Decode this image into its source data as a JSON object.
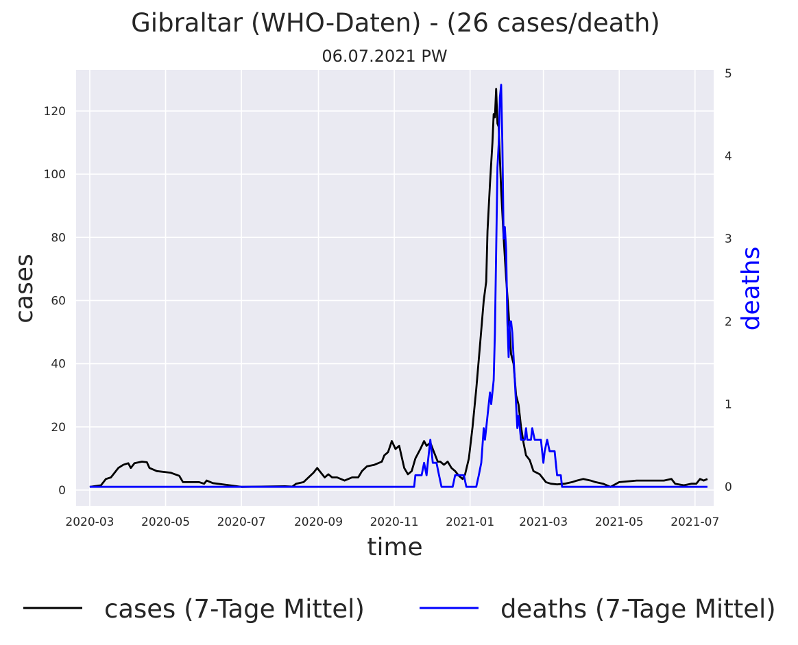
{
  "title": "Gibraltar (WHO-Daten) - (26 cases/death)",
  "subtitle": "06.07.2021 PW",
  "chart_data": {
    "type": "line",
    "title": "Gibraltar (WHO-Daten) - (26 cases/death)",
    "subtitle": "06.07.2021 PW",
    "xlabel": "time",
    "ylabel": "cases",
    "y2label": "deaths",
    "x_ticks": [
      "2020-03",
      "2020-05",
      "2020-07",
      "2020-09",
      "2020-11",
      "2021-01",
      "2021-03",
      "2021-05",
      "2021-07"
    ],
    "y_ticks": [
      0,
      20,
      40,
      60,
      80,
      100,
      120
    ],
    "y2_ticks": [
      0,
      1,
      2,
      3,
      4,
      5
    ],
    "xlim": [
      "2020-02-19",
      "2021-07-16"
    ],
    "ylim": [
      -5,
      133
    ],
    "y2lim": [
      -0.23,
      5.04
    ],
    "grid": true,
    "legend": "bottom",
    "series": [
      {
        "name": "cases (7-Tage Mittel)",
        "axis": "left",
        "color": "#000000",
        "points": [
          [
            "2020-03-01",
            1
          ],
          [
            "2020-03-10",
            1.5
          ],
          [
            "2020-03-14",
            3.5
          ],
          [
            "2020-03-18",
            4
          ],
          [
            "2020-03-24",
            7
          ],
          [
            "2020-03-28",
            8
          ],
          [
            "2020-04-01",
            8.5
          ],
          [
            "2020-04-03",
            7
          ],
          [
            "2020-04-06",
            8.5
          ],
          [
            "2020-04-12",
            9
          ],
          [
            "2020-04-16",
            8.8
          ],
          [
            "2020-04-18",
            7
          ],
          [
            "2020-04-24",
            6
          ],
          [
            "2020-05-05",
            5.5
          ],
          [
            "2020-05-12",
            4.5
          ],
          [
            "2020-05-15",
            2.5
          ],
          [
            "2020-05-28",
            2.5
          ],
          [
            "2020-06-01",
            2
          ],
          [
            "2020-06-03",
            3
          ],
          [
            "2020-06-08",
            2.2
          ],
          [
            "2020-06-20",
            1.6
          ],
          [
            "2020-07-01",
            1
          ],
          [
            "2020-08-05",
            1.2
          ],
          [
            "2020-08-11",
            1.1
          ],
          [
            "2020-08-14",
            2
          ],
          [
            "2020-08-20",
            2.5
          ],
          [
            "2020-08-24",
            4
          ],
          [
            "2020-08-28",
            5.5
          ],
          [
            "2020-08-31",
            7
          ],
          [
            "2020-09-03",
            5.5
          ],
          [
            "2020-09-06",
            4
          ],
          [
            "2020-09-09",
            5
          ],
          [
            "2020-09-12",
            4
          ],
          [
            "2020-09-16",
            4
          ],
          [
            "2020-09-22",
            3
          ],
          [
            "2020-09-28",
            4
          ],
          [
            "2020-10-03",
            4
          ],
          [
            "2020-10-06",
            6
          ],
          [
            "2020-10-10",
            7.5
          ],
          [
            "2020-10-16",
            8
          ],
          [
            "2020-10-22",
            9
          ],
          [
            "2020-10-24",
            11
          ],
          [
            "2020-10-27",
            12
          ],
          [
            "2020-10-30",
            15.5
          ],
          [
            "2020-11-02",
            13
          ],
          [
            "2020-11-05",
            14
          ],
          [
            "2020-11-09",
            7
          ],
          [
            "2020-11-12",
            5
          ],
          [
            "2020-11-15",
            6
          ],
          [
            "2020-11-18",
            10
          ],
          [
            "2020-11-22",
            13
          ],
          [
            "2020-11-25",
            15.5
          ],
          [
            "2020-11-27",
            14
          ],
          [
            "2020-11-30",
            15
          ],
          [
            "2020-12-03",
            12
          ],
          [
            "2020-12-06",
            9
          ],
          [
            "2020-12-08",
            9
          ],
          [
            "2020-12-11",
            8
          ],
          [
            "2020-12-14",
            9
          ],
          [
            "2020-12-17",
            7
          ],
          [
            "2020-12-20",
            6
          ],
          [
            "2020-12-23",
            4.5
          ],
          [
            "2020-12-26",
            3.5
          ],
          [
            "2020-12-28",
            5
          ],
          [
            "2020-12-31",
            10
          ],
          [
            "2021-01-03",
            20
          ],
          [
            "2021-01-06",
            32
          ],
          [
            "2021-01-09",
            46
          ],
          [
            "2021-01-12",
            60
          ],
          [
            "2021-01-14",
            66
          ],
          [
            "2021-01-15",
            82
          ],
          [
            "2021-01-17",
            97
          ],
          [
            "2021-01-19",
            110
          ],
          [
            "2021-01-20",
            119
          ],
          [
            "2021-01-21",
            118
          ],
          [
            "2021-01-22",
            127
          ],
          [
            "2021-01-23",
            116
          ],
          [
            "2021-01-24",
            115
          ],
          [
            "2021-01-26",
            95
          ],
          [
            "2021-01-28",
            80
          ],
          [
            "2021-01-30",
            67
          ],
          [
            "2021-02-01",
            56
          ],
          [
            "2021-02-03",
            43
          ],
          [
            "2021-02-05",
            40
          ],
          [
            "2021-02-07",
            30
          ],
          [
            "2021-02-09",
            27
          ],
          [
            "2021-02-11",
            20
          ],
          [
            "2021-02-13",
            15
          ],
          [
            "2021-02-15",
            11
          ],
          [
            "2021-02-18",
            9.5
          ],
          [
            "2021-02-21",
            6
          ],
          [
            "2021-02-26",
            5
          ],
          [
            "2021-03-03",
            2.5
          ],
          [
            "2021-03-07",
            2
          ],
          [
            "2021-03-12",
            1.8
          ],
          [
            "2021-03-18",
            2
          ],
          [
            "2021-03-24",
            2.5
          ],
          [
            "2021-03-28",
            3
          ],
          [
            "2021-04-02",
            3.5
          ],
          [
            "2021-04-08",
            3
          ],
          [
            "2021-04-12",
            2.5
          ],
          [
            "2021-04-18",
            2
          ],
          [
            "2021-04-24",
            1
          ],
          [
            "2021-05-01",
            2.5
          ],
          [
            "2021-05-15",
            3
          ],
          [
            "2021-05-22",
            3
          ],
          [
            "2021-05-29",
            3
          ],
          [
            "2021-06-06",
            3
          ],
          [
            "2021-06-12",
            3.5
          ],
          [
            "2021-06-15",
            2
          ],
          [
            "2021-06-22",
            1.5
          ],
          [
            "2021-06-28",
            2
          ],
          [
            "2021-07-02",
            2
          ],
          [
            "2021-07-05",
            3.5
          ],
          [
            "2021-07-08",
            3
          ],
          [
            "2021-07-11",
            3.5
          ]
        ]
      },
      {
        "name": "deaths (7-Tage Mittel)",
        "axis": "right",
        "color": "#0000ff",
        "points": [
          [
            "2020-03-01",
            0
          ],
          [
            "2020-11-17",
            0
          ],
          [
            "2020-11-18",
            0.14
          ],
          [
            "2020-11-23",
            0.14
          ],
          [
            "2020-11-25",
            0.29
          ],
          [
            "2020-11-27",
            0.14
          ],
          [
            "2020-11-28",
            0.29
          ],
          [
            "2020-11-30",
            0.57
          ],
          [
            "2020-12-02",
            0.29
          ],
          [
            "2020-12-05",
            0.29
          ],
          [
            "2020-12-07",
            0.14
          ],
          [
            "2020-12-09",
            0
          ],
          [
            "2020-12-18",
            0
          ],
          [
            "2020-12-20",
            0.14
          ],
          [
            "2020-12-27",
            0.14
          ],
          [
            "2020-12-29",
            0
          ],
          [
            "2021-01-06",
            0
          ],
          [
            "2021-01-08",
            0.14
          ],
          [
            "2021-01-10",
            0.29
          ],
          [
            "2021-01-12",
            0.71
          ],
          [
            "2021-01-13",
            0.57
          ],
          [
            "2021-01-14",
            0.71
          ],
          [
            "2021-01-17",
            1.14
          ],
          [
            "2021-01-18",
            1.0
          ],
          [
            "2021-01-20",
            1.29
          ],
          [
            "2021-01-21",
            1.86
          ],
          [
            "2021-01-23",
            3.86
          ],
          [
            "2021-01-24",
            4.14
          ],
          [
            "2021-01-25",
            4.71
          ],
          [
            "2021-01-26",
            4.86
          ],
          [
            "2021-01-27",
            4.14
          ],
          [
            "2021-01-28",
            3.0
          ],
          [
            "2021-01-29",
            3.14
          ],
          [
            "2021-01-30",
            2.86
          ],
          [
            "2021-01-31",
            2.0
          ],
          [
            "2021-02-01",
            1.57
          ],
          [
            "2021-02-02",
            2.0
          ],
          [
            "2021-02-03",
            2.0
          ],
          [
            "2021-02-04",
            1.86
          ],
          [
            "2021-02-06",
            1.29
          ],
          [
            "2021-02-08",
            0.71
          ],
          [
            "2021-02-09",
            0.86
          ],
          [
            "2021-02-11",
            0.57
          ],
          [
            "2021-02-14",
            0.57
          ],
          [
            "2021-02-15",
            0.71
          ],
          [
            "2021-02-16",
            0.57
          ],
          [
            "2021-02-19",
            0.57
          ],
          [
            "2021-02-20",
            0.71
          ],
          [
            "2021-02-22",
            0.57
          ],
          [
            "2021-02-27",
            0.57
          ],
          [
            "2021-03-01",
            0.29
          ],
          [
            "2021-03-02",
            0.43
          ],
          [
            "2021-03-04",
            0.57
          ],
          [
            "2021-03-06",
            0.43
          ],
          [
            "2021-03-10",
            0.43
          ],
          [
            "2021-03-12",
            0.14
          ],
          [
            "2021-03-15",
            0.14
          ],
          [
            "2021-03-16",
            0
          ],
          [
            "2021-07-11",
            0
          ]
        ]
      }
    ]
  }
}
